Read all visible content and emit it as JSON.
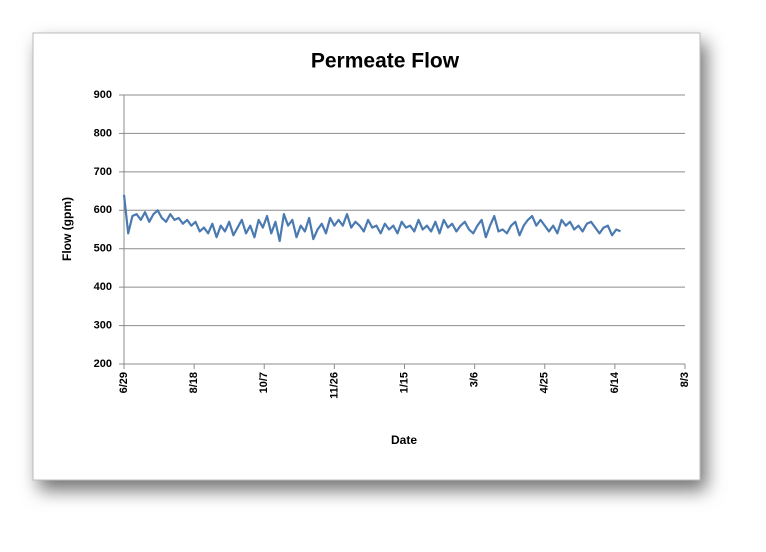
{
  "chart_data": {
    "type": "line",
    "title": "Permeate Flow",
    "x_label": "Date",
    "y_label": "Flow (gpm)",
    "x": [
      0,
      3,
      6,
      9,
      12,
      15,
      18,
      21,
      24,
      27,
      30,
      33,
      36,
      39,
      42,
      45,
      48,
      51,
      54,
      57,
      60,
      63,
      66,
      69,
      72,
      75,
      78,
      81,
      84,
      87,
      90,
      93,
      96,
      99,
      102,
      105,
      108,
      111,
      114,
      117,
      120,
      123,
      126,
      129,
      132,
      135,
      138,
      141,
      144,
      147,
      150,
      153,
      156,
      159,
      162,
      165,
      168,
      171,
      174,
      177,
      180,
      183,
      186,
      189,
      192,
      195,
      198,
      201,
      204,
      207,
      210,
      213,
      216,
      219,
      222,
      225,
      228,
      231,
      234,
      237,
      240,
      243,
      246,
      249,
      252,
      255,
      258,
      261,
      264,
      267,
      270,
      273,
      276,
      279,
      282,
      285,
      288,
      291,
      294,
      297,
      300,
      303,
      306,
      309,
      312,
      315,
      318,
      321,
      324,
      327,
      330,
      333,
      336,
      339,
      342,
      345,
      348,
      351,
      354
    ],
    "series": [
      {
        "name": "Flow",
        "color": "#4a7ab0",
        "values": [
          640,
          540,
          585,
          590,
          575,
          595,
          570,
          590,
          600,
          580,
          570,
          590,
          575,
          580,
          565,
          575,
          560,
          570,
          545,
          555,
          540,
          565,
          530,
          560,
          545,
          570,
          535,
          555,
          575,
          540,
          560,
          530,
          575,
          555,
          585,
          540,
          570,
          520,
          590,
          560,
          575,
          530,
          560,
          545,
          580,
          525,
          550,
          565,
          540,
          580,
          560,
          575,
          560,
          590,
          555,
          570,
          560,
          545,
          575,
          555,
          560,
          540,
          565,
          550,
          560,
          540,
          570,
          555,
          560,
          545,
          575,
          550,
          560,
          545,
          570,
          540,
          575,
          555,
          565,
          545,
          560,
          570,
          550,
          540,
          560,
          575,
          530,
          560,
          585,
          545,
          550,
          540,
          560,
          570,
          535,
          560,
          575,
          585,
          560,
          575,
          560,
          545,
          560,
          540,
          575,
          560,
          570,
          550,
          560,
          545,
          565,
          570,
          555,
          540,
          555,
          560,
          535,
          550,
          545
        ]
      }
    ],
    "xlim": [
      0,
      400
    ],
    "xticks": [
      {
        "value": 0,
        "label": "6/29"
      },
      {
        "value": 50,
        "label": "8/18"
      },
      {
        "value": 100,
        "label": "10/7"
      },
      {
        "value": 150,
        "label": "11/26"
      },
      {
        "value": 200,
        "label": "1/15"
      },
      {
        "value": 250,
        "label": "3/6"
      },
      {
        "value": 300,
        "label": "4/25"
      },
      {
        "value": 350,
        "label": "6/14"
      },
      {
        "value": 400,
        "label": "8/3"
      }
    ],
    "ylim": [
      200,
      900
    ],
    "yticks": [
      200,
      300,
      400,
      500,
      600,
      700,
      800,
      900
    ],
    "grid": true
  }
}
